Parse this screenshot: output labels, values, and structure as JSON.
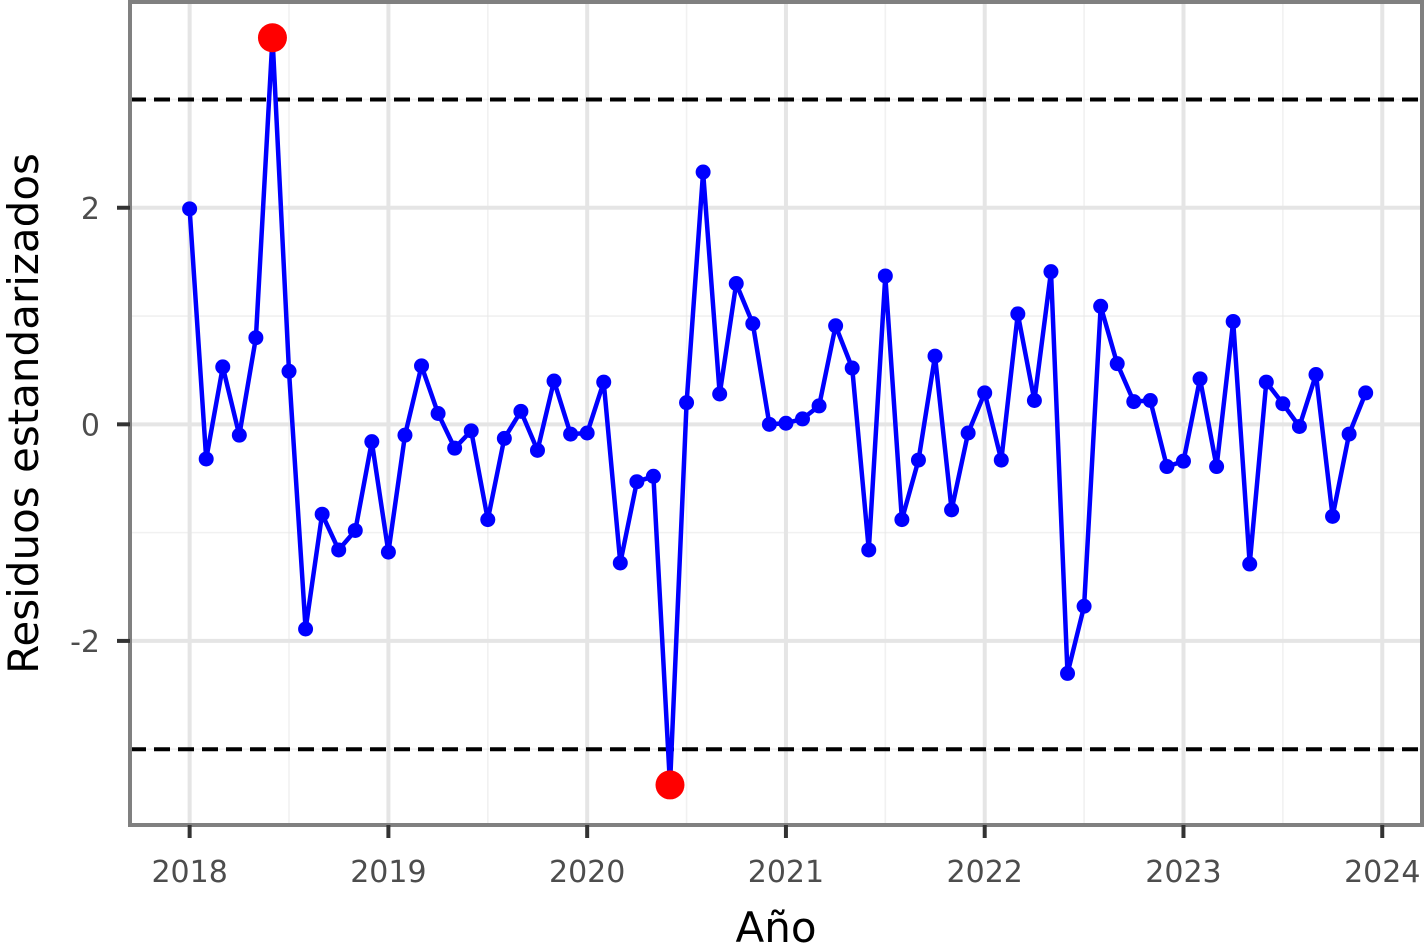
{
  "chart_data": {
    "type": "line",
    "title": "",
    "xlabel": "Año",
    "ylabel": "Residuos estandarizados",
    "xlim": [
      2017.7,
      2024.2
    ],
    "ylim": [
      -3.7,
      3.9
    ],
    "x_ticks": [
      2018,
      2019,
      2020,
      2021,
      2022,
      2023,
      2024
    ],
    "x_tick_labels": [
      "2018",
      "2019",
      "2020",
      "2021",
      "2022",
      "2023",
      "2024"
    ],
    "y_ticks": [
      -2,
      0,
      2
    ],
    "y_tick_labels": [
      "-2",
      "0",
      "2"
    ],
    "grid": true,
    "reference_lines": [
      3,
      -3
    ],
    "series": [
      {
        "x_start": 2018,
        "x_step_per_point": "monthly",
        "values": [
          1.99,
          -0.32,
          0.53,
          -0.1,
          0.8,
          3.57,
          0.49,
          -1.89,
          -0.83,
          -1.16,
          -0.98,
          -0.16,
          -1.18,
          -0.1,
          0.54,
          0.1,
          -0.22,
          -0.06,
          -0.88,
          -0.13,
          0.12,
          -0.24,
          0.4,
          -0.09,
          -0.08,
          0.39,
          -1.28,
          -0.53,
          -0.48,
          -3.33,
          0.2,
          2.33,
          0.28,
          1.3,
          0.93,
          0.0,
          0.01,
          0.05,
          0.17,
          0.91,
          0.52,
          -1.16,
          1.37,
          -0.88,
          -0.33,
          0.63,
          -0.79,
          -0.08,
          0.29,
          -0.33,
          1.02,
          0.22,
          1.41,
          -2.3,
          -1.68,
          1.09,
          0.56,
          0.21,
          0.22,
          -0.39,
          -0.34,
          0.42,
          -0.39,
          0.95,
          -1.29,
          0.39,
          0.19,
          -0.02,
          0.46,
          -0.85,
          -0.09,
          0.29
        ]
      }
    ],
    "outliers": [
      {
        "x": "2018-06",
        "y": 3.57
      },
      {
        "x": "2020-06",
        "y": -3.33
      }
    ],
    "colors": {
      "line": "#0000ff",
      "points": "#0000ff",
      "outliers": "#ff0000",
      "reference_lines": "#000000",
      "grid": "#e5e5e5",
      "panel_border": "#808080"
    }
  }
}
